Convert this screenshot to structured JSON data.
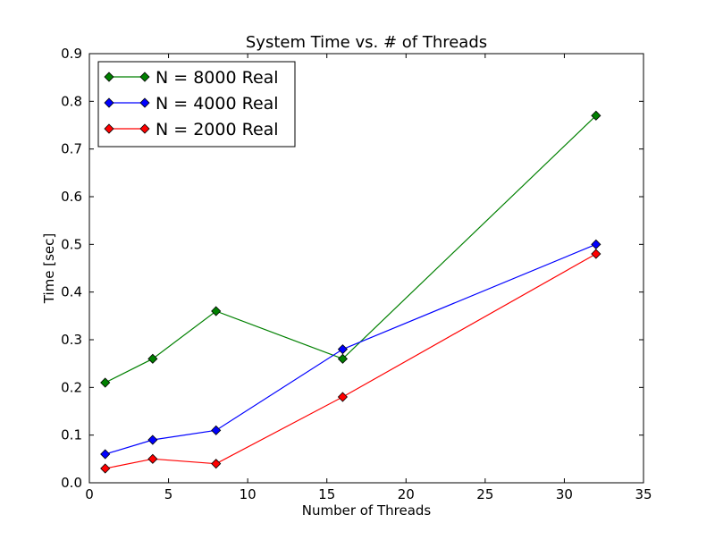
{
  "chart_data": {
    "type": "line",
    "title": "System Time vs. # of Threads",
    "xlabel": "Number of Threads",
    "ylabel": "Time [sec]",
    "xlim": [
      0,
      35
    ],
    "ylim": [
      0,
      0.9
    ],
    "xticks": [
      "0",
      "5",
      "10",
      "15",
      "20",
      "25",
      "30",
      "35"
    ],
    "yticks": [
      "0.0",
      "0.1",
      "0.2",
      "0.3",
      "0.4",
      "0.5",
      "0.6",
      "0.7",
      "0.8",
      "0.9"
    ],
    "grid": false,
    "legend_position": "top-left",
    "marker": "diamond",
    "x": [
      1,
      4,
      8,
      16,
      32
    ],
    "series": [
      {
        "name": "N = 8000 Real",
        "color": "#008000",
        "values": [
          0.21,
          0.26,
          0.36,
          0.26,
          0.77
        ]
      },
      {
        "name": "N = 4000 Real",
        "color": "#0000ff",
        "values": [
          0.06,
          0.09,
          0.11,
          0.28,
          0.5
        ]
      },
      {
        "name": "N = 2000 Real",
        "color": "#ff0000",
        "values": [
          0.03,
          0.05,
          0.04,
          0.18,
          0.48
        ]
      }
    ]
  }
}
